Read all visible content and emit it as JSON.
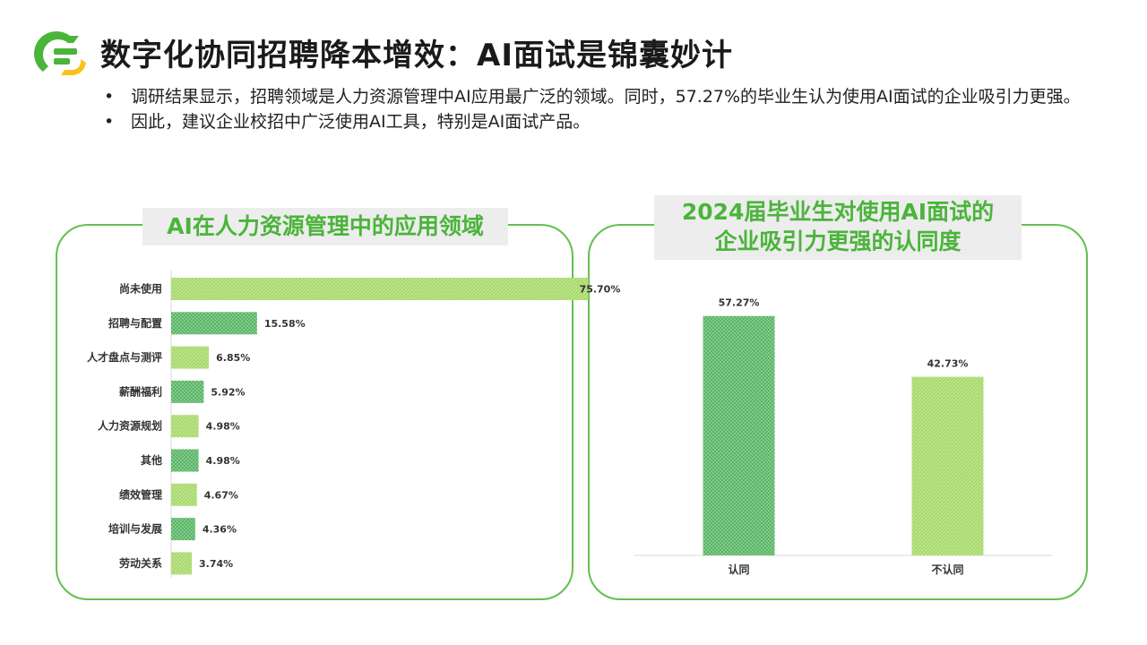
{
  "header": {
    "title": "数字化协同招聘降本增效：AI面试是锦囊妙计"
  },
  "bullets": [
    "调研结果显示，招聘领域是人力资源管理中AI应用最广泛的领域。同时，57.27%的毕业生认为使用AI面试的企业吸引力更强。",
    "因此，建议企业校招中广泛使用AI工具，特别是AI面试产品。"
  ],
  "bullet_symbol": "•",
  "colors": {
    "accent_green": "#4bb43b",
    "panel_border": "#64bf4f",
    "bar_light": "#a6d96a",
    "bar_dark": "#4caf63",
    "logo_green": "#4bb43b",
    "logo_yellow": "#f7c31a"
  },
  "chart_data": [
    {
      "type": "bar",
      "orientation": "horizontal",
      "title": "AI在人力资源管理中的应用领域",
      "categories": [
        "尚未使用",
        "招聘与配置",
        "人才盘点与测评",
        "薪酬福利",
        "人力资源规划",
        "其他",
        "绩效管理",
        "培训与发展",
        "劳动关系"
      ],
      "values": [
        75.7,
        15.58,
        6.85,
        5.92,
        4.98,
        4.98,
        4.67,
        4.36,
        3.74
      ],
      "value_labels": [
        "75.70%",
        "15.58%",
        "6.85%",
        "5.92%",
        "4.98%",
        "4.98%",
        "4.67%",
        "4.36%",
        "3.74%"
      ],
      "bar_styles": [
        "light",
        "dark",
        "light",
        "dark",
        "light",
        "dark",
        "light",
        "dark",
        "light"
      ],
      "xlim": [
        0,
        80
      ],
      "grid": false,
      "legend": "none"
    },
    {
      "type": "bar",
      "orientation": "vertical",
      "title_lines": [
        "2024届毕业生对使用AI面试的",
        "企业吸引力更强的认同度"
      ],
      "categories": [
        "认同",
        "不认同"
      ],
      "values": [
        57.27,
        42.73
      ],
      "value_labels": [
        "57.27%",
        "42.73%"
      ],
      "bar_styles": [
        "dark",
        "light"
      ],
      "ylim": [
        0,
        60
      ],
      "grid": false,
      "legend": "none"
    }
  ]
}
